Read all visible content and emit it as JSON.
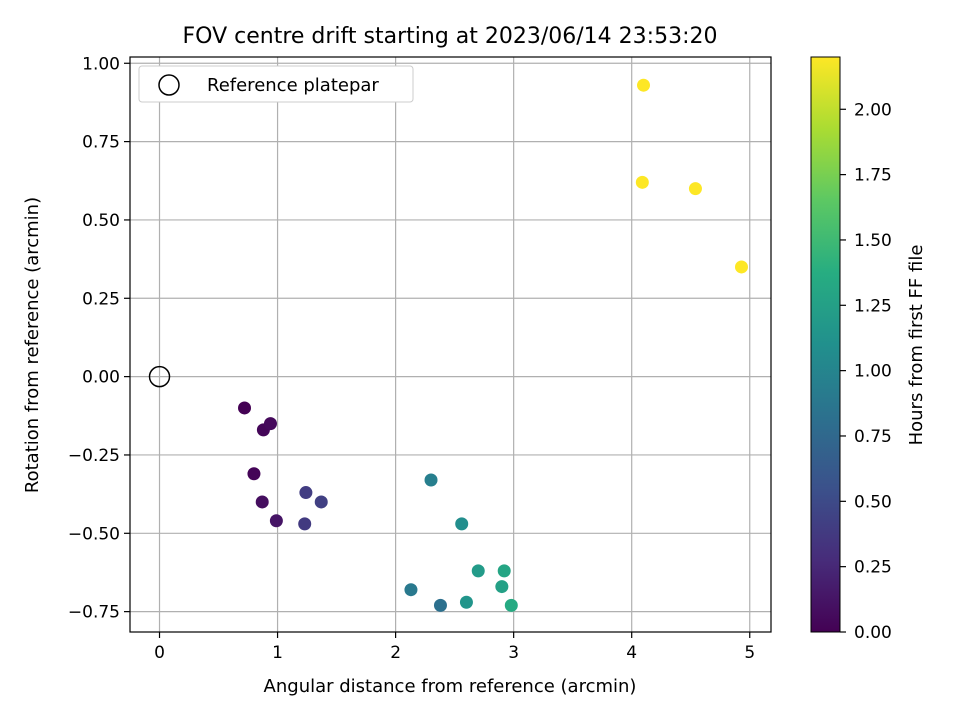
{
  "chart_data": {
    "type": "scatter",
    "title": "FOV centre drift starting at 2023/06/14 23:53:20",
    "xlabel": "Angular distance from reference (arcmin)",
    "ylabel": "Rotation from reference (arcmin)",
    "xlim": [
      -0.25,
      5.18
    ],
    "ylim": [
      -0.815,
      1.02
    ],
    "x_ticks": [
      0,
      1,
      2,
      3,
      4,
      5
    ],
    "x_tick_labels": [
      "0",
      "1",
      "2",
      "3",
      "4",
      "5"
    ],
    "y_ticks": [
      1.0,
      0.75,
      0.5,
      0.25,
      0.0,
      -0.25,
      -0.5,
      -0.75
    ],
    "y_tick_labels": [
      "1.00",
      "0.75",
      "0.50",
      "0.25",
      "0.00",
      "−0.25",
      "−0.50",
      "−0.75"
    ],
    "grid": true,
    "legend": {
      "placement": "upper-left",
      "entries": [
        "Reference platepar"
      ]
    },
    "reference_point": {
      "x": 0.0,
      "y": 0.0
    },
    "colorbar": {
      "label": "Hours from first FF file",
      "range": [
        0.0,
        2.2
      ],
      "ticks": [
        0.0,
        0.25,
        0.5,
        0.75,
        1.0,
        1.25,
        1.5,
        1.75,
        2.0
      ],
      "tick_labels": [
        "0.00",
        "0.25",
        "0.50",
        "0.75",
        "1.00",
        "1.25",
        "1.50",
        "1.75",
        "2.00"
      ],
      "colormap": "viridis"
    },
    "points": [
      {
        "x": 0.72,
        "y": -0.1,
        "c": 0.0
      },
      {
        "x": 0.88,
        "y": -0.17,
        "c": 0.03
      },
      {
        "x": 0.94,
        "y": -0.15,
        "c": 0.05
      },
      {
        "x": 0.8,
        "y": -0.31,
        "c": 0.02
      },
      {
        "x": 0.87,
        "y": -0.4,
        "c": 0.08
      },
      {
        "x": 0.99,
        "y": -0.46,
        "c": 0.12
      },
      {
        "x": 1.24,
        "y": -0.37,
        "c": 0.4
      },
      {
        "x": 1.37,
        "y": -0.4,
        "c": 0.42
      },
      {
        "x": 1.23,
        "y": -0.47,
        "c": 0.38
      },
      {
        "x": 2.13,
        "y": -0.68,
        "c": 0.9
      },
      {
        "x": 2.38,
        "y": -0.73,
        "c": 0.82
      },
      {
        "x": 2.3,
        "y": -0.33,
        "c": 0.95
      },
      {
        "x": 2.56,
        "y": -0.47,
        "c": 1.08
      },
      {
        "x": 2.6,
        "y": -0.72,
        "c": 1.15
      },
      {
        "x": 2.7,
        "y": -0.62,
        "c": 1.2
      },
      {
        "x": 2.92,
        "y": -0.62,
        "c": 1.3
      },
      {
        "x": 2.9,
        "y": -0.67,
        "c": 1.25
      },
      {
        "x": 2.98,
        "y": -0.73,
        "c": 1.35
      },
      {
        "x": 4.1,
        "y": 0.93,
        "c": 2.2
      },
      {
        "x": 4.09,
        "y": 0.62,
        "c": 2.2
      },
      {
        "x": 4.54,
        "y": 0.6,
        "c": 2.2
      },
      {
        "x": 4.93,
        "y": 0.35,
        "c": 2.2
      }
    ]
  }
}
